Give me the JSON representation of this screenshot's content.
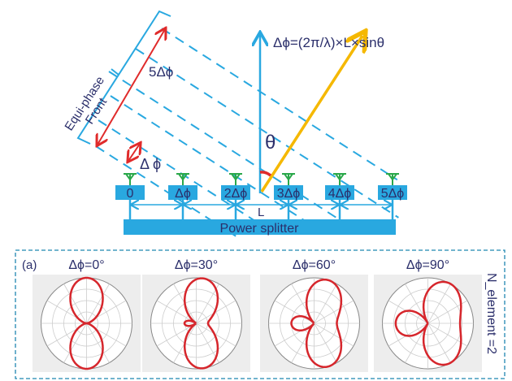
{
  "colors": {
    "blue": "#29a8e0",
    "text": "#2b2f6b",
    "red": "#e02b2b",
    "yellow": "#f5b800",
    "green": "#2aa84a",
    "plot_red": "#d6262c"
  },
  "formula": "Δϕ=(2π/λ)×L×sinθ",
  "theta_label": "θ",
  "front_label_1": "Equi-phase",
  "front_label_2": "Front",
  "five_dphi_label": "5Δϕ",
  "dphi_label": "Δ ϕ",
  "elements": [
    "0",
    "Δϕ",
    "2Δϕ",
    "3Δϕ",
    "4Δϕ",
    "5Δϕ"
  ],
  "spacing_label": "L",
  "splitter_label": "Power splitter",
  "panel": {
    "tag": "(a)",
    "side_label": "N_element =2",
    "plots": [
      {
        "title": "Δϕ=0°",
        "phase_deg": 0
      },
      {
        "title": "Δϕ=30°",
        "phase_deg": 30
      },
      {
        "title": "Δϕ=60°",
        "phase_deg": 60
      },
      {
        "title": "Δϕ=90°",
        "phase_deg": 90
      }
    ]
  }
}
